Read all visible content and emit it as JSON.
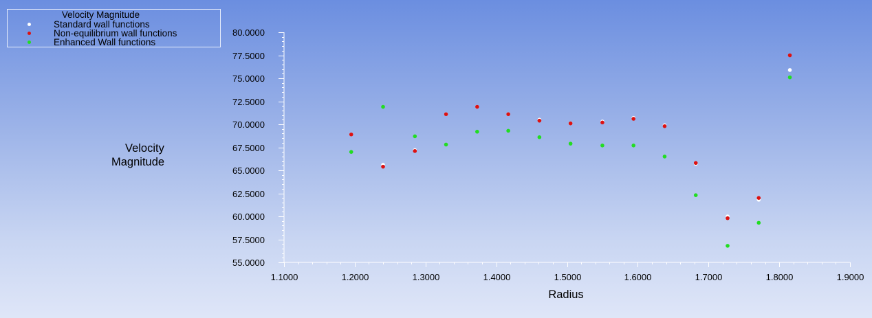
{
  "chart_data": {
    "type": "scatter",
    "legend": {
      "title": "Velocity Magnitude",
      "placement": "top-left"
    },
    "xlabel": "Radius",
    "ylabel_line1": "Velocity",
    "ylabel_line2": "Magnitude",
    "xlim": [
      1.1,
      1.9
    ],
    "ylim": [
      55.0,
      80.0
    ],
    "x_ticks": [
      "1.1000",
      "1.2000",
      "1.3000",
      "1.4000",
      "1.5000",
      "1.6000",
      "1.7000",
      "1.8000",
      "1.9000"
    ],
    "y_ticks": [
      "55.0000",
      "57.5000",
      "60.0000",
      "62.5000",
      "65.0000",
      "67.5000",
      "70.0000",
      "72.5000",
      "75.0000",
      "77.5000",
      "80.0000"
    ],
    "x_tick_values": [
      1.1,
      1.2,
      1.3,
      1.4,
      1.5,
      1.6,
      1.7,
      1.8,
      1.9
    ],
    "y_tick_values": [
      55.0,
      57.5,
      60.0,
      62.5,
      65.0,
      67.5,
      70.0,
      72.5,
      75.0,
      77.5,
      80.0
    ],
    "x": [
      1.195,
      1.24,
      1.285,
      1.329,
      1.373,
      1.417,
      1.461,
      1.505,
      1.55,
      1.594,
      1.638,
      1.682,
      1.727,
      1.771,
      1.815
    ],
    "series": [
      {
        "name": "Standard wall functions",
        "color": "#ffffff",
        "values": [
          68.9,
          65.6,
          67.2,
          71.1,
          71.9,
          71.1,
          70.5,
          70.1,
          70.3,
          70.7,
          69.9,
          65.7,
          60.0,
          61.8,
          75.9
        ]
      },
      {
        "name": "Non-equilibrium wall functions",
        "color": "#dd1111",
        "values": [
          68.9,
          65.4,
          67.1,
          71.1,
          71.9,
          71.1,
          70.4,
          70.1,
          70.2,
          70.6,
          69.8,
          65.8,
          59.8,
          62.0,
          77.5
        ]
      },
      {
        "name": "Enhanced Wall functions",
        "color": "#22dd22",
        "values": [
          67.0,
          71.9,
          68.7,
          67.8,
          69.2,
          69.3,
          68.6,
          67.9,
          67.7,
          67.7,
          66.5,
          62.3,
          56.8,
          59.3,
          75.1
        ]
      }
    ]
  }
}
